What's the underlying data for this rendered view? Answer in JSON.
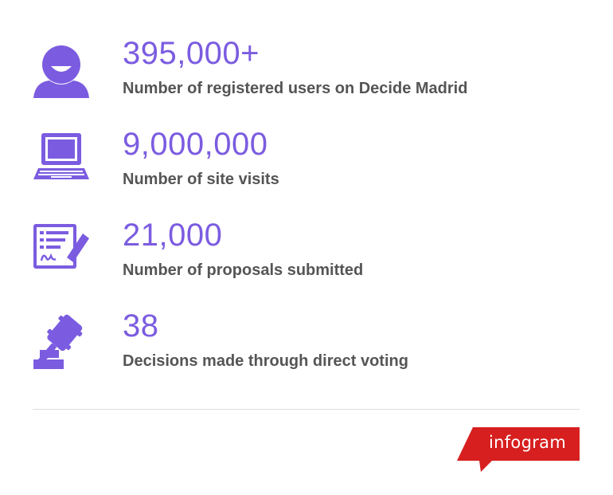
{
  "theme": {
    "accent": "#7b5ce0",
    "label_color": "#555555",
    "brand_red": "#d71f1f"
  },
  "stats": [
    {
      "value": "395,000+",
      "label": "Number of registered users on Decide Madrid",
      "icon": "user-icon"
    },
    {
      "value": "9,000,000",
      "label": "Number of site visits",
      "icon": "computer-icon"
    },
    {
      "value": "21,000",
      "label": "Number of proposals submitted",
      "icon": "signed-document-icon"
    },
    {
      "value": "38",
      "label": "Decisions made through direct voting",
      "icon": "gavel-icon"
    }
  ],
  "footer": {
    "brand": "infogram",
    "brand_icon": "infogram-logo"
  }
}
